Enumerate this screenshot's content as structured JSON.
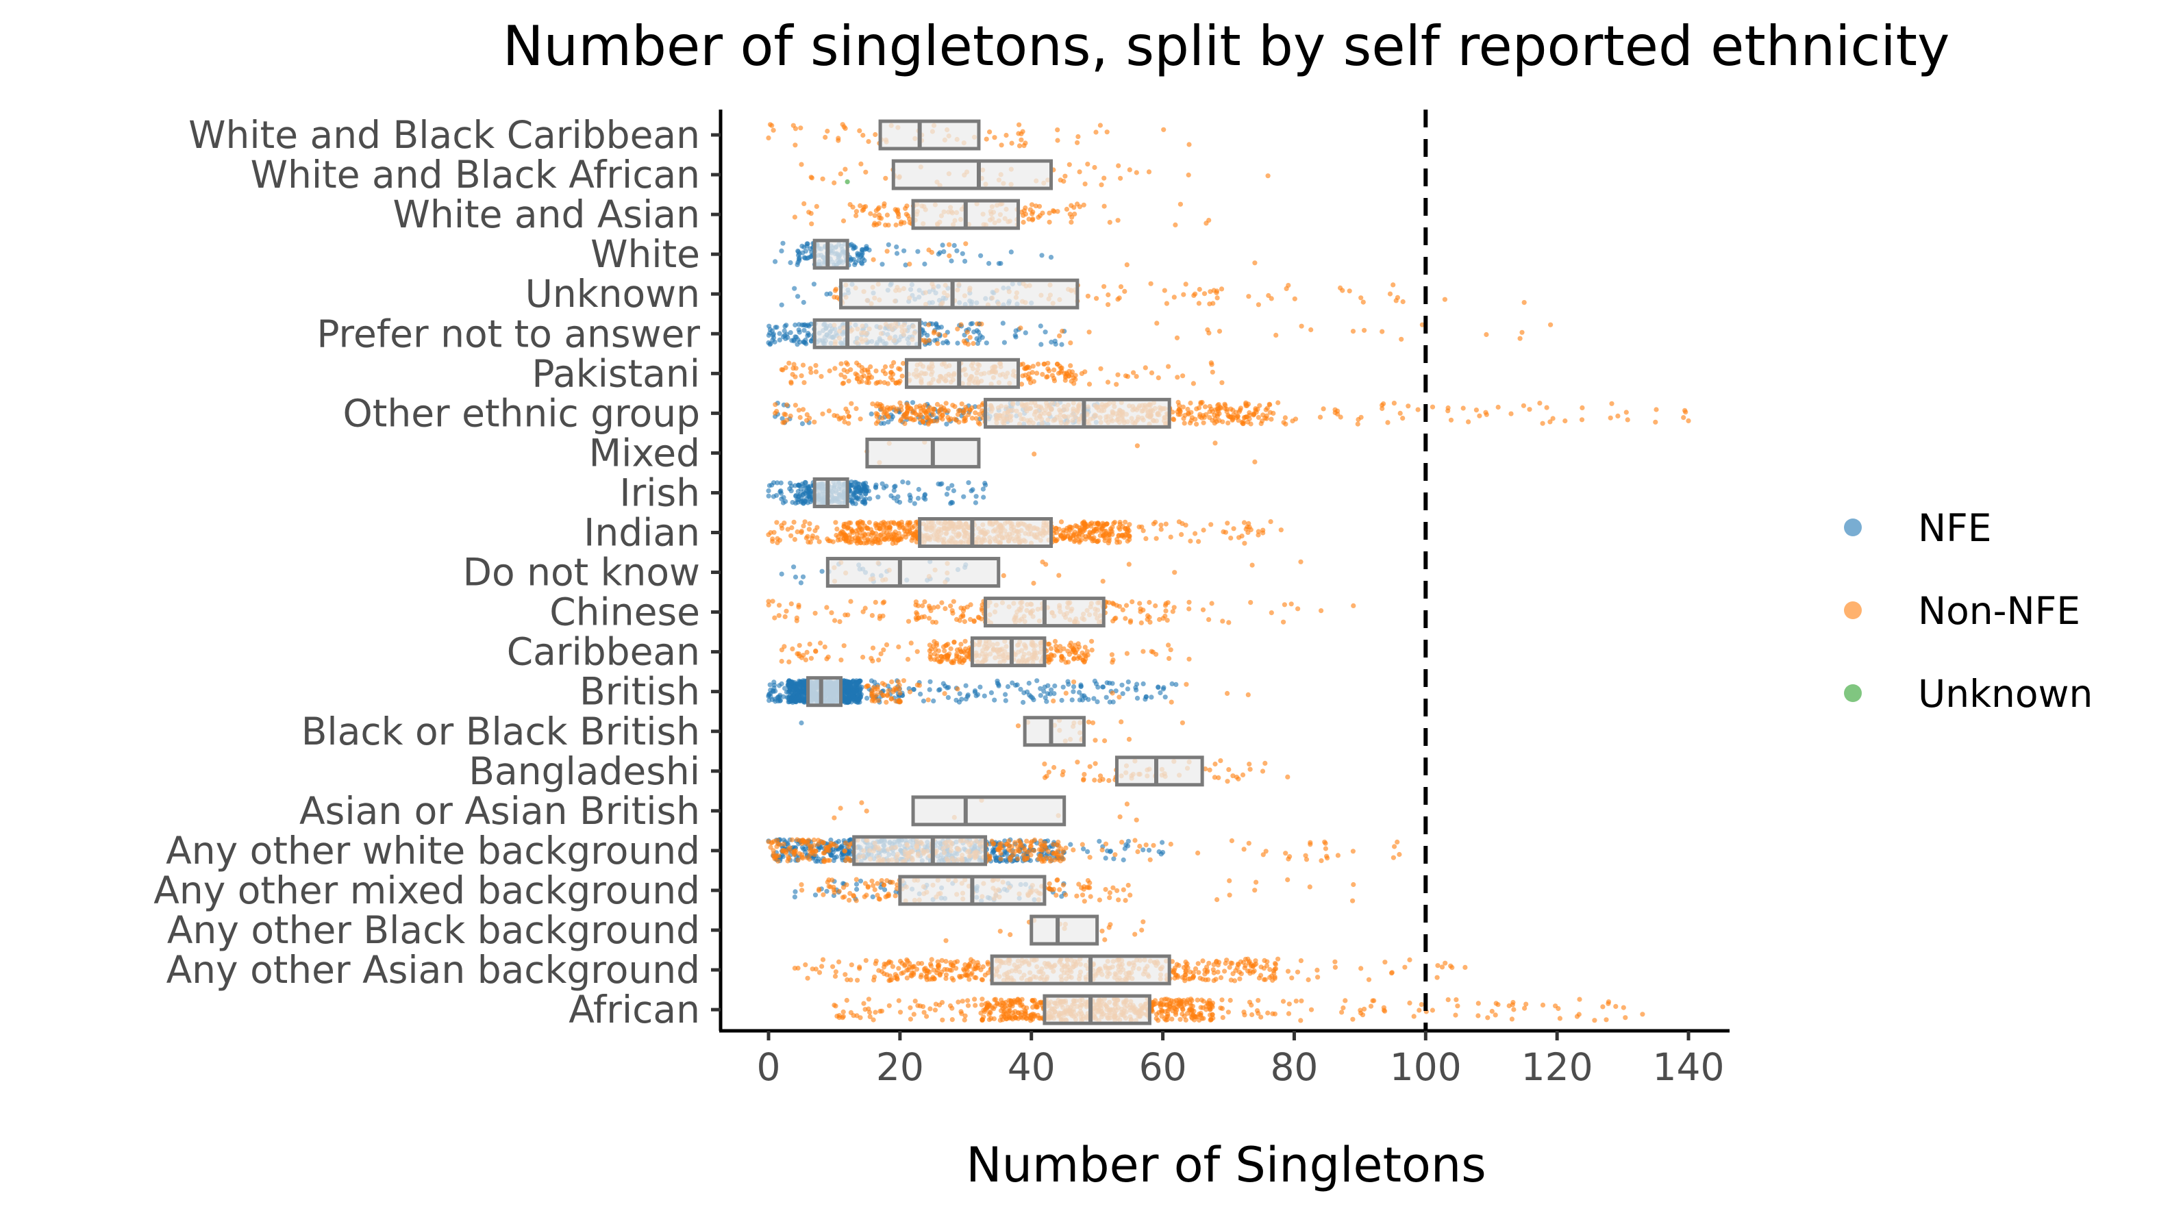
{
  "chart_data": {
    "type": "box-strip",
    "title": "Number of singletons, split by self reported ethnicity",
    "xlabel": "Number of Singletons",
    "ylabel": "",
    "xlim": [
      -7,
      147
    ],
    "xticks": [
      0,
      20,
      40,
      60,
      80,
      100,
      120,
      140
    ],
    "reference_line": {
      "x": 100,
      "style": "dashed"
    },
    "grid": false,
    "legend": {
      "placement": "right",
      "entries": [
        {
          "name": "NFE",
          "color": "#1f77b4"
        },
        {
          "name": "Non-NFE",
          "color": "#ff7f0e"
        },
        {
          "name": "Unknown",
          "color": "#2ca02c"
        }
      ]
    },
    "categories": [
      {
        "name": "White and Black Caribbean",
        "box": [
          17,
          23,
          32
        ],
        "points": [
          {
            "group": "Non-NFE",
            "n": 60,
            "min": 0,
            "max": 64
          }
        ]
      },
      {
        "name": "White and Black African",
        "box": [
          19,
          32,
          43
        ],
        "points": [
          {
            "group": "Non-NFE",
            "n": 50,
            "min": 5,
            "max": 76
          },
          {
            "group": "Unknown",
            "n": 1,
            "min": 12,
            "max": 12
          }
        ]
      },
      {
        "name": "White and Asian",
        "box": [
          22,
          30,
          38
        ],
        "points": [
          {
            "group": "Non-NFE",
            "n": 140,
            "min": 4,
            "max": 67
          }
        ]
      },
      {
        "name": "White",
        "box": [
          7,
          9,
          12
        ],
        "points": [
          {
            "group": "NFE",
            "n": 160,
            "min": 1,
            "max": 43
          },
          {
            "group": "Non-NFE",
            "n": 10,
            "min": 30,
            "max": 74
          }
        ]
      },
      {
        "name": "Unknown",
        "box": [
          11,
          28,
          47
        ],
        "points": [
          {
            "group": "NFE",
            "n": 60,
            "min": 2,
            "max": 40
          },
          {
            "group": "Non-NFE",
            "n": 110,
            "min": 10,
            "max": 115
          }
        ]
      },
      {
        "name": "Prefer not to answer",
        "box": [
          7,
          12,
          23
        ],
        "points": [
          {
            "group": "NFE",
            "n": 220,
            "min": 0,
            "max": 45
          },
          {
            "group": "Non-NFE",
            "n": 80,
            "min": 10,
            "max": 119
          }
        ]
      },
      {
        "name": "Pakistani",
        "box": [
          21,
          29,
          38
        ],
        "points": [
          {
            "group": "Non-NFE",
            "n": 260,
            "min": 2,
            "max": 69
          }
        ]
      },
      {
        "name": "Other ethnic group",
        "box": [
          33,
          48,
          61
        ],
        "points": [
          {
            "group": "NFE",
            "n": 110,
            "min": 1,
            "max": 50
          },
          {
            "group": "Non-NFE",
            "n": 600,
            "min": 1,
            "max": 140
          }
        ]
      },
      {
        "name": "Mixed",
        "box": [
          15,
          25,
          32
        ],
        "points": [
          {
            "group": "Non-NFE",
            "n": 8,
            "min": 15,
            "max": 74
          }
        ]
      },
      {
        "name": "Irish",
        "box": [
          7,
          9,
          12
        ],
        "points": [
          {
            "group": "NFE",
            "n": 320,
            "min": 0,
            "max": 33
          }
        ]
      },
      {
        "name": "Indian",
        "box": [
          23,
          31,
          43
        ],
        "points": [
          {
            "group": "Non-NFE",
            "n": 700,
            "min": 0,
            "max": 78
          }
        ]
      },
      {
        "name": "Do not know",
        "box": [
          9,
          20,
          35
        ],
        "points": [
          {
            "group": "NFE",
            "n": 25,
            "min": 2,
            "max": 30
          },
          {
            "group": "Non-NFE",
            "n": 25,
            "min": 10,
            "max": 81
          }
        ]
      },
      {
        "name": "Chinese",
        "box": [
          33,
          42,
          51
        ],
        "points": [
          {
            "group": "Non-NFE",
            "n": 220,
            "min": 0,
            "max": 89
          }
        ]
      },
      {
        "name": "Caribbean",
        "box": [
          31,
          37,
          42
        ],
        "points": [
          {
            "group": "Non-NFE",
            "n": 300,
            "min": 2,
            "max": 64
          }
        ]
      },
      {
        "name": "British",
        "box": [
          6,
          8,
          11
        ],
        "points": [
          {
            "group": "NFE",
            "n": 900,
            "min": 0,
            "max": 62
          },
          {
            "group": "Non-NFE",
            "n": 60,
            "min": 20,
            "max": 73
          }
        ]
      },
      {
        "name": "Black or Black British",
        "box": [
          39,
          43,
          48
        ],
        "points": [
          {
            "group": "NFE",
            "n": 1,
            "min": 5,
            "max": 5
          },
          {
            "group": "Non-NFE",
            "n": 20,
            "min": 38,
            "max": 63
          }
        ]
      },
      {
        "name": "Bangladeshi",
        "box": [
          53,
          59,
          66
        ],
        "points": [
          {
            "group": "Non-NFE",
            "n": 60,
            "min": 42,
            "max": 79
          }
        ]
      },
      {
        "name": "Asian or Asian British",
        "box": [
          22,
          30,
          45
        ],
        "points": [
          {
            "group": "Non-NFE",
            "n": 10,
            "min": 10,
            "max": 56
          }
        ]
      },
      {
        "name": "Any other white background",
        "box": [
          13,
          25,
          33
        ],
        "points": [
          {
            "group": "NFE",
            "n": 500,
            "min": 0,
            "max": 60
          },
          {
            "group": "Non-NFE",
            "n": 350,
            "min": 0,
            "max": 96
          }
        ]
      },
      {
        "name": "Any other mixed background",
        "box": [
          20,
          31,
          42
        ],
        "points": [
          {
            "group": "NFE",
            "n": 60,
            "min": 4,
            "max": 45
          },
          {
            "group": "Non-NFE",
            "n": 150,
            "min": 5,
            "max": 89
          }
        ]
      },
      {
        "name": "Any other Black background",
        "box": [
          40,
          44,
          50
        ],
        "points": [
          {
            "group": "Non-NFE",
            "n": 15,
            "min": 27,
            "max": 57
          }
        ]
      },
      {
        "name": "Any other Asian background",
        "box": [
          34,
          49,
          61
        ],
        "points": [
          {
            "group": "Non-NFE",
            "n": 500,
            "min": 4,
            "max": 106
          }
        ]
      },
      {
        "name": "African",
        "box": [
          42,
          49,
          58
        ],
        "points": [
          {
            "group": "Non-NFE",
            "n": 650,
            "min": 10,
            "max": 133
          }
        ]
      }
    ]
  }
}
